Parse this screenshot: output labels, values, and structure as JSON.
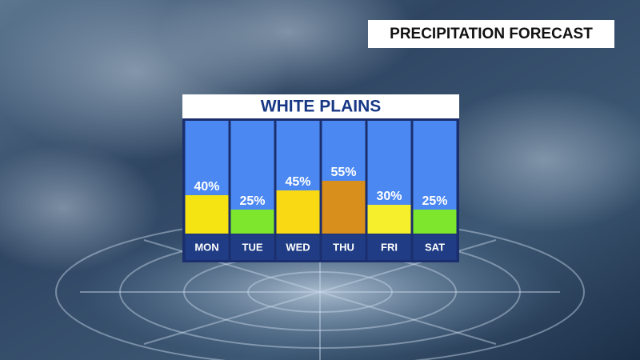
{
  "header": "PRECIPITATION FORECAST",
  "chart_data": {
    "type": "bar",
    "title": "WHITE PLAINS",
    "categories": [
      "MON",
      "TUE",
      "WED",
      "THU",
      "FRI",
      "SAT"
    ],
    "values": [
      40,
      25,
      45,
      55,
      30,
      25
    ],
    "value_labels": [
      "40%",
      "25%",
      "45%",
      "55%",
      "30%",
      "25%"
    ],
    "colors": [
      "#f6e312",
      "#7ee62c",
      "#f8d914",
      "#d98f1c",
      "#f6f02c",
      "#7ee62c"
    ]
  }
}
